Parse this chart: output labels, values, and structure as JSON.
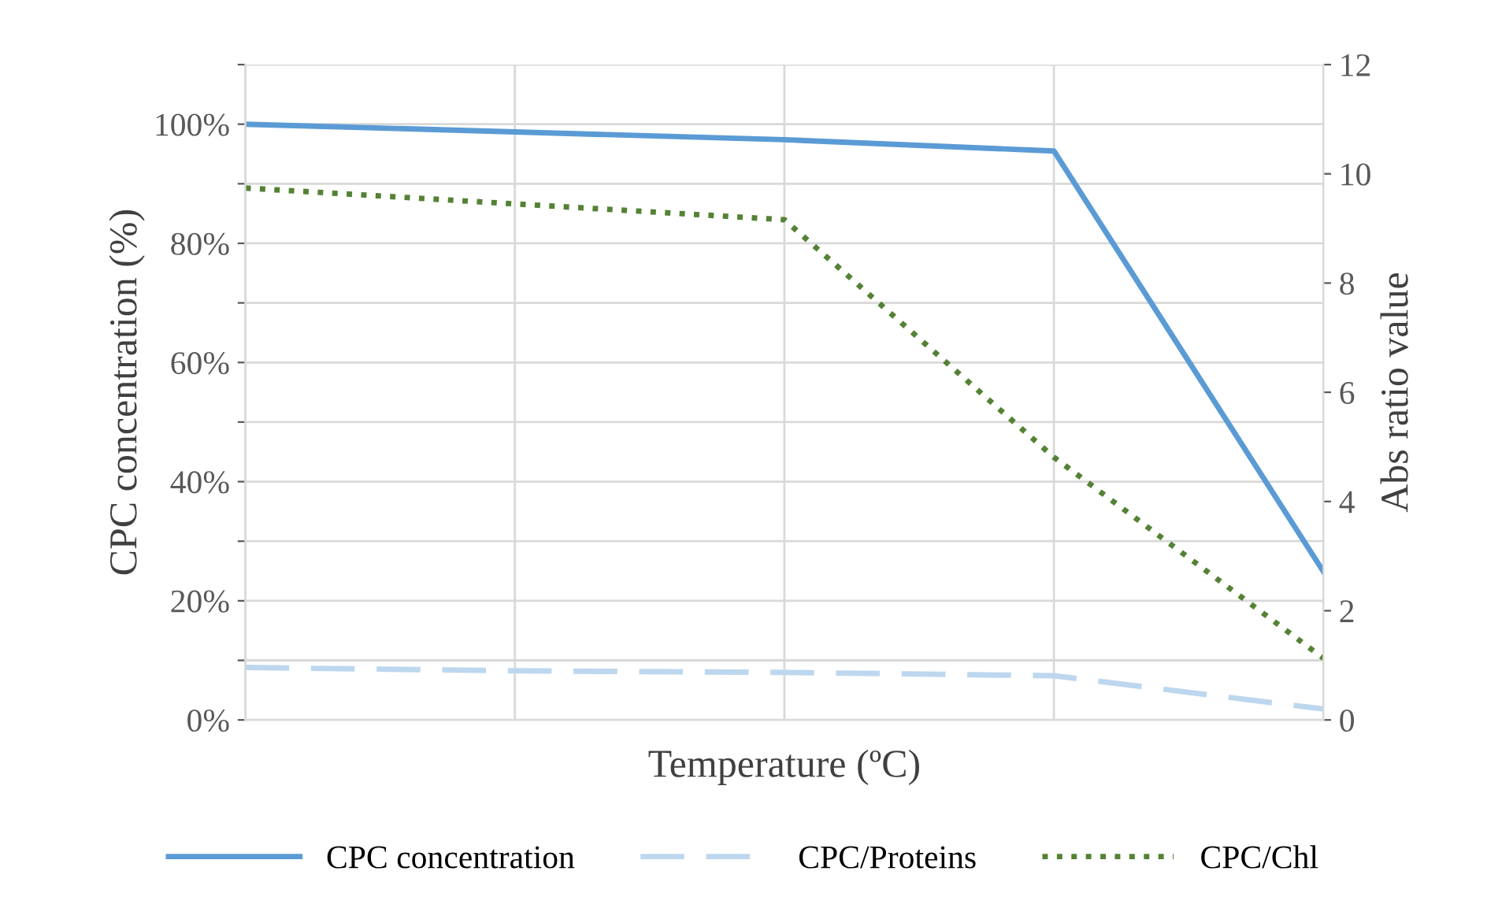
{
  "chart_data": {
    "type": "line",
    "xlabel": "Temperature (ºC)",
    "ylabel": "CPC concentration (%)",
    "y2label": "Abs ratio value",
    "categories": [
      null,
      null,
      null,
      null,
      null
    ],
    "series": [
      {
        "name": "CPC concentration",
        "color": "#5b9bd5",
        "values": [
          100,
          98.7,
          97.4,
          95.5,
          24.9
        ],
        "line_style": "solid"
      },
      {
        "name": "CPC/Proteins",
        "color": "#bdd7ee",
        "values": [
          0.96,
          0.9,
          0.87,
          0.81,
          0.2
        ],
        "axis": "y2",
        "line_style": "dashed"
      },
      {
        "name": "CPC/Chl",
        "color": "#548235",
        "values": [
          9.74,
          9.45,
          9.16,
          4.81,
          1.13
        ],
        "axis": "y2",
        "line_style": "dotted"
      }
    ],
    "ylim": [
      0,
      110
    ],
    "yticks": [
      {
        "value": 0,
        "label": "0%"
      },
      {
        "value": 10,
        "label": null
      },
      {
        "value": 20,
        "label": "20%"
      },
      {
        "value": 30,
        "label": null
      },
      {
        "value": 40,
        "label": "40%"
      },
      {
        "value": 50,
        "label": null
      },
      {
        "value": 60,
        "label": "60%"
      },
      {
        "value": 70,
        "label": null
      },
      {
        "value": 80,
        "label": "80%"
      },
      {
        "value": 90,
        "label": null
      },
      {
        "value": 100,
        "label": "100%"
      },
      {
        "value": 110,
        "label": null
      }
    ],
    "y2lim": [
      0,
      12
    ],
    "y2ticks": [
      0,
      2,
      4,
      6,
      8,
      10,
      12
    ],
    "grid": true,
    "legend": "bottom",
    "marker": "none"
  }
}
